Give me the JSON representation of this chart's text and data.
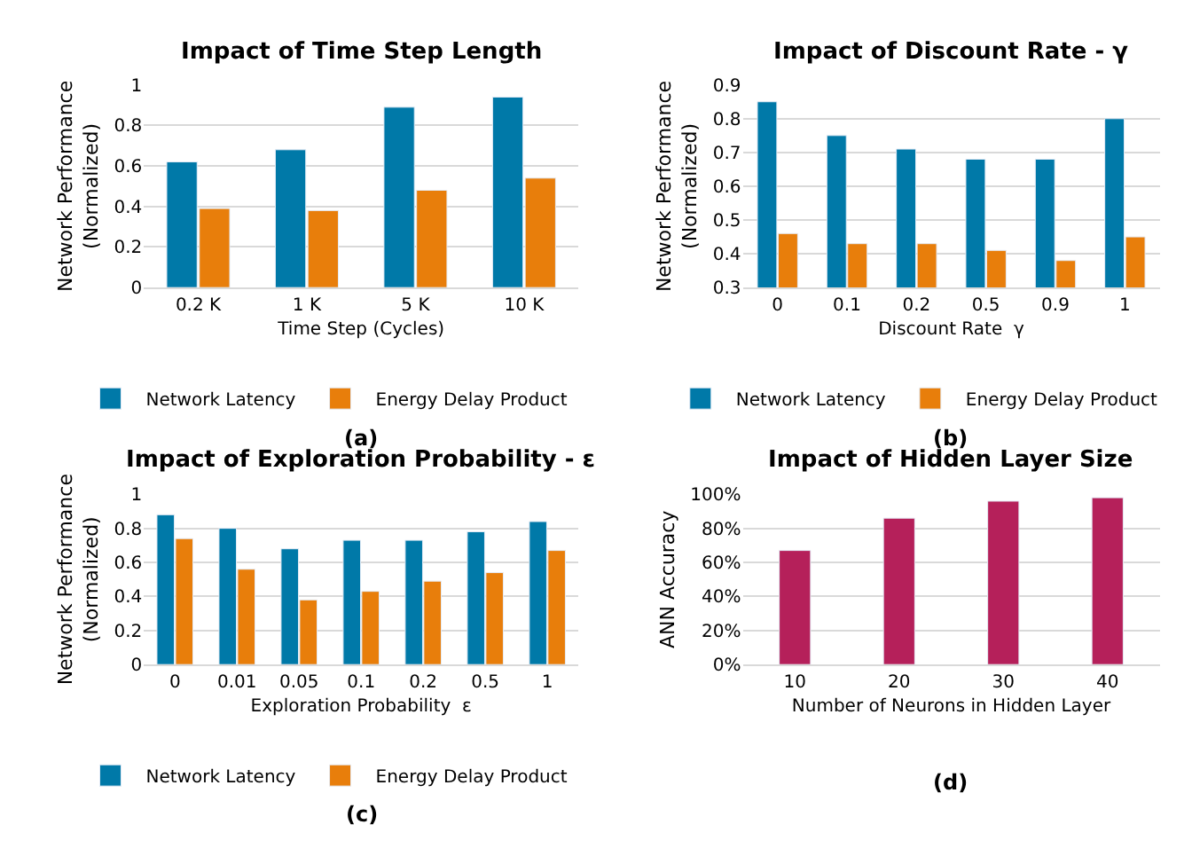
{
  "chart_data": [
    {
      "type": "bar",
      "title": "Impact of Time Step Length",
      "xlabel": "Time Step (Cycles)",
      "ylabel": "Network Performance (Normalized)",
      "categories": [
        "0.2 K",
        "1 K",
        "5 K",
        "10 K"
      ],
      "series": [
        {
          "name": "Network Latency",
          "color": "#0079a8",
          "values": [
            0.62,
            0.68,
            0.89,
            0.94
          ]
        },
        {
          "name": "Energy Delay Product",
          "color": "#e87e0b",
          "values": [
            0.39,
            0.38,
            0.48,
            0.54
          ]
        }
      ],
      "ylim": [
        0,
        1
      ],
      "yticks": [
        0,
        0.2,
        0.4,
        0.6,
        0.8,
        1
      ],
      "grid": "y",
      "legend": "bottom",
      "annotations": [
        "(a)"
      ]
    },
    {
      "type": "bar",
      "title": "Impact of Discount Rate - γ",
      "xlabel": "Discount Rate  γ",
      "ylabel": "Network Performance (Normalized)",
      "categories": [
        "0",
        "0.1",
        "0.2",
        "0.5",
        "0.9",
        "1"
      ],
      "series": [
        {
          "name": "Network Latency",
          "color": "#0079a8",
          "values": [
            0.85,
            0.75,
            0.71,
            0.68,
            0.68,
            0.8
          ]
        },
        {
          "name": "Energy Delay Product",
          "color": "#e87e0b",
          "values": [
            0.46,
            0.43,
            0.43,
            0.41,
            0.38,
            0.45
          ]
        }
      ],
      "ylim": [
        0.3,
        0.9
      ],
      "yticks": [
        0.3,
        0.4,
        0.5,
        0.6,
        0.7,
        0.8,
        0.9
      ],
      "grid": "y",
      "legend": "bottom",
      "annotations": [
        "(b)"
      ]
    },
    {
      "type": "bar",
      "title": "Impact of Exploration Probability - ε",
      "xlabel": "Exploration Probability  ε",
      "ylabel": "Network Performance (Normalized)",
      "categories": [
        "0",
        "0.01",
        "0.05",
        "0.1",
        "0.2",
        "0.5",
        "1"
      ],
      "series": [
        {
          "name": "Network Latency",
          "color": "#0079a8",
          "values": [
            0.88,
            0.8,
            0.68,
            0.73,
            0.73,
            0.78,
            0.84
          ]
        },
        {
          "name": "Energy Delay Product",
          "color": "#e87e0b",
          "values": [
            0.74,
            0.56,
            0.38,
            0.43,
            0.49,
            0.54,
            0.67
          ]
        }
      ],
      "ylim": [
        0,
        1
      ],
      "yticks": [
        0,
        0.2,
        0.4,
        0.6,
        0.8,
        1
      ],
      "grid": "y",
      "legend": "bottom",
      "annotations": [
        "(c)"
      ]
    },
    {
      "type": "bar",
      "title": "Impact of Hidden Layer Size",
      "xlabel": "Number of Neurons in Hidden Layer",
      "ylabel": "ANN Accuracy",
      "categories": [
        "10",
        "20",
        "30",
        "40"
      ],
      "series": [
        {
          "color": "#b5205a",
          "values": [
            67,
            86,
            96,
            98
          ]
        }
      ],
      "ylim": [
        0,
        100
      ],
      "yticks": [
        {
          "value": 0,
          "label": "0%"
        },
        {
          "value": 20,
          "label": "20%"
        },
        {
          "value": 40,
          "label": "40%"
        },
        {
          "value": 60,
          "label": "60%"
        },
        {
          "value": 80,
          "label": "80%"
        },
        {
          "value": 100,
          "label": "100%"
        }
      ],
      "grid": "y",
      "annotations": [
        "(d)"
      ]
    }
  ]
}
